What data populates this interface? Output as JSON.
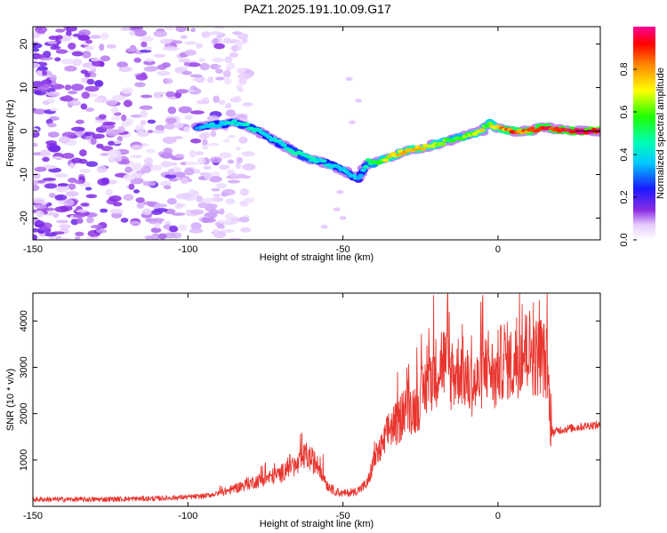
{
  "title": "PAZ1.2025.191.10.09.G17",
  "chart_data": [
    {
      "type": "heatmap",
      "xlabel": "Height of straight line (km)",
      "ylabel": "Frequency (Hz)",
      "xlim": [
        -150,
        33
      ],
      "ylim": [
        -25,
        24
      ],
      "xticks": [
        "-150",
        "-100",
        "-50",
        "0"
      ],
      "yticks": [
        "-20",
        "-10",
        "0",
        "10",
        "20"
      ],
      "colorbar": {
        "label": "Normalized spectral amplitude",
        "range": [
          0,
          1
        ],
        "ticks": [
          "0.0",
          "0.2",
          "0.4",
          "0.6",
          "0.8"
        ],
        "colormap": "rainbow (white-violet-blue-cyan-green-yellow-red-magenta)"
      },
      "ridge": {
        "height_km": [
          -97,
          -90,
          -85,
          -80,
          -75,
          -70,
          -65,
          -60,
          -55,
          -50,
          -45,
          -42,
          -40,
          -35,
          -30,
          -25,
          -20,
          -15,
          -10,
          -5,
          -3,
          0,
          5,
          10,
          15,
          20,
          25,
          33
        ],
        "frequency_hz": [
          1,
          1.5,
          2,
          1,
          -1,
          -3,
          -5,
          -6.5,
          -7.5,
          -9,
          -11,
          -7,
          -7.5,
          -6,
          -4.5,
          -4,
          -3,
          -2,
          -1,
          0,
          2,
          0.5,
          0,
          0,
          1,
          0.3,
          0,
          0
        ],
        "amplitude": [
          0.35,
          0.4,
          0.4,
          0.45,
          0.4,
          0.4,
          0.45,
          0.45,
          0.4,
          0.4,
          0.35,
          0.45,
          0.55,
          0.7,
          0.8,
          0.75,
          0.7,
          0.55,
          0.6,
          0.7,
          0.6,
          0.8,
          0.85,
          0.85,
          0.9,
          0.9,
          0.95,
          1.0
        ]
      },
      "noise_region_km": [
        -150,
        -90
      ]
    },
    {
      "type": "line",
      "xlabel": "Height of straight line (km)",
      "ylabel": "SNR (10 * v/v)",
      "xlim": [
        -150,
        33
      ],
      "ylim": [
        0,
        4600
      ],
      "xticks": [
        "-150",
        "-100",
        "-50",
        "0"
      ],
      "yticks": [
        "1000",
        "2000",
        "3000",
        "4000"
      ],
      "color": "#e8352e",
      "series": [
        {
          "x": [
            -150,
            -140,
            -130,
            -120,
            -110,
            -100,
            -95,
            -90,
            -85,
            -80,
            -75,
            -70,
            -67,
            -65,
            -62,
            -60,
            -57,
            -55,
            -52,
            -50,
            -47,
            -45,
            -42,
            -40,
            -37,
            -35,
            -32,
            -30,
            -27,
            -25,
            -22,
            -20,
            -18,
            -15,
            -12,
            -10,
            -7,
            -5,
            -3,
            -1,
            0,
            2,
            5,
            7,
            10,
            12,
            14,
            16,
            17,
            18,
            20,
            25,
            30,
            33
          ],
          "y": [
            150,
            150,
            150,
            160,
            170,
            200,
            220,
            280,
            380,
            500,
            600,
            700,
            900,
            850,
            1100,
            1000,
            800,
            450,
            300,
            280,
            300,
            350,
            500,
            1000,
            1300,
            1700,
            1800,
            2200,
            2100,
            2300,
            2800,
            2900,
            3200,
            2800,
            3000,
            2700,
            2600,
            2900,
            3100,
            2700,
            3000,
            3200,
            3000,
            3300,
            3400,
            3200,
            3300,
            3000,
            1700,
            1600,
            1650,
            1700,
            1750,
            1750
          ]
        }
      ]
    }
  ]
}
